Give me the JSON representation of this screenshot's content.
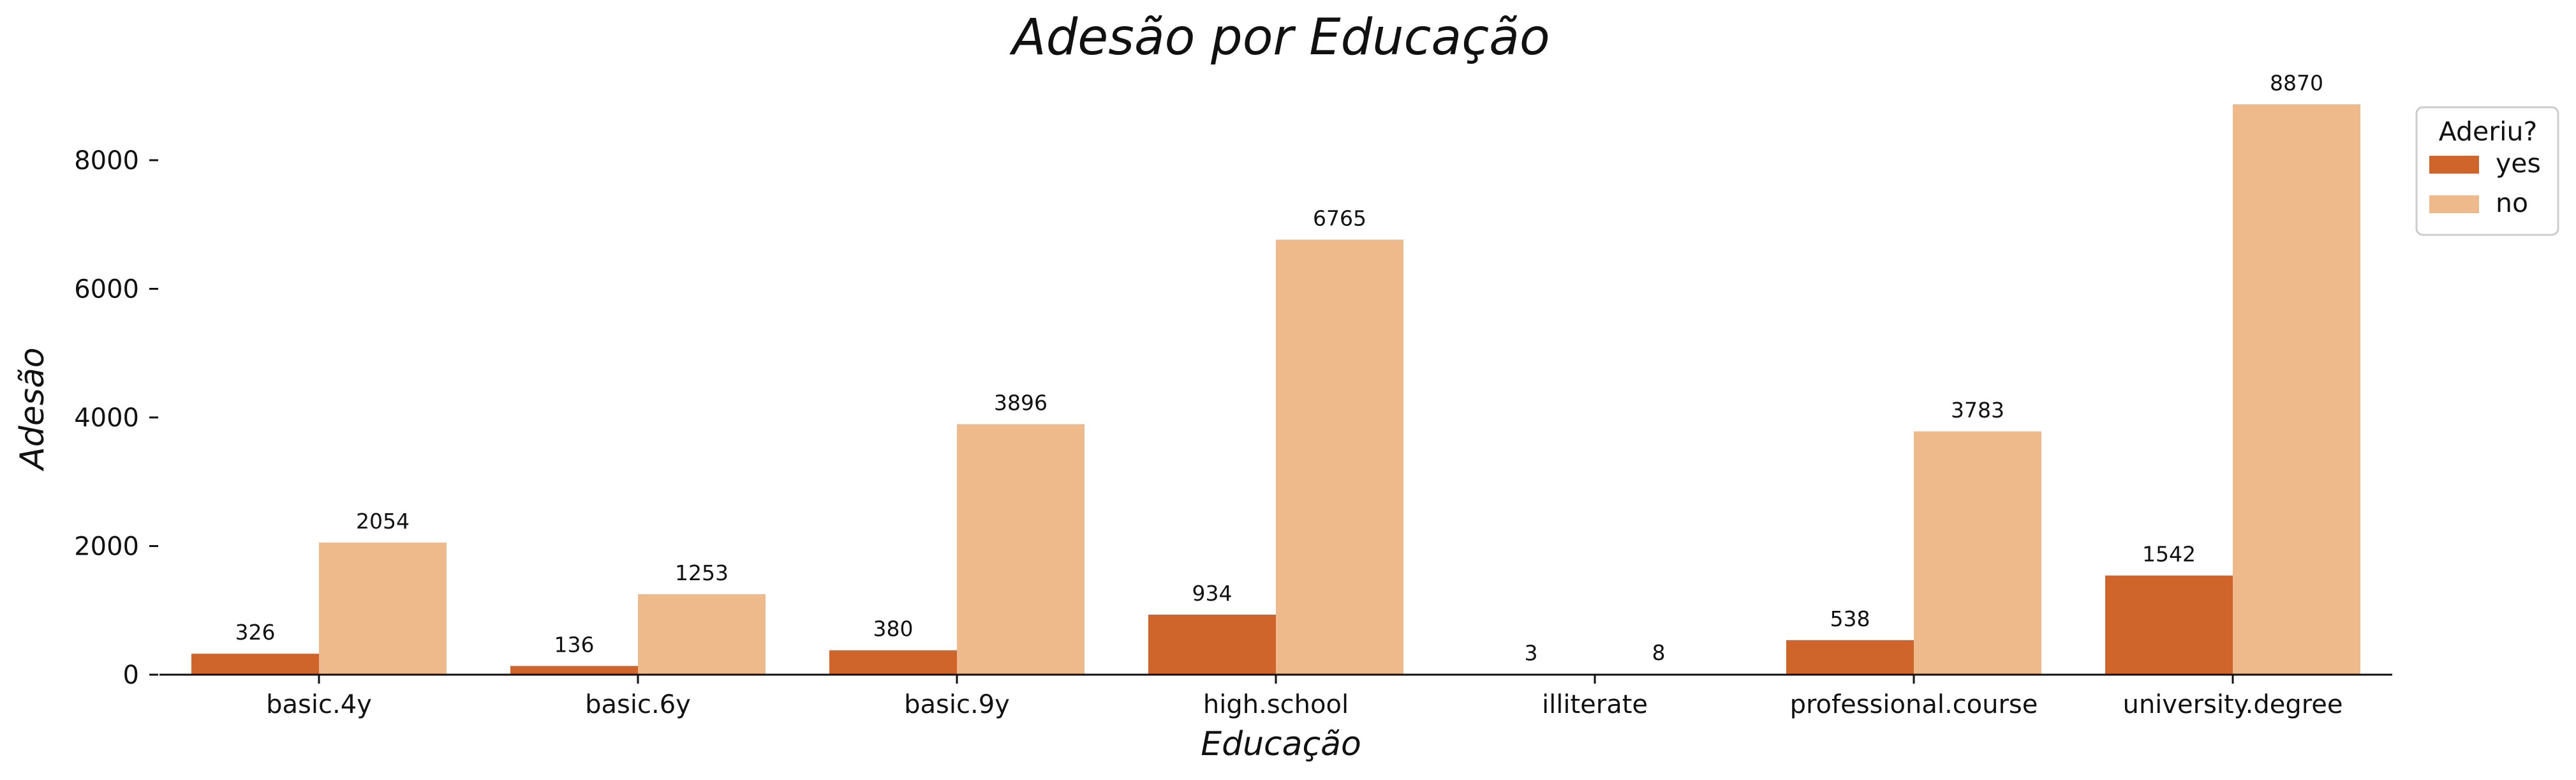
{
  "chart_data": {
    "type": "bar",
    "title": "Adesão por Educação",
    "xlabel": "Educação",
    "ylabel": "Adesão",
    "categories": [
      "basic.4y",
      "basic.6y",
      "basic.9y",
      "high.school",
      "illiterate",
      "professional.course",
      "university.degree"
    ],
    "series": [
      {
        "name": "yes",
        "color": "#cf652b",
        "values": [
          326,
          136,
          380,
          934,
          3,
          538,
          1542
        ]
      },
      {
        "name": "no",
        "color": "#eeba8c",
        "values": [
          2054,
          1253,
          3896,
          6765,
          8,
          3783,
          8870
        ]
      }
    ],
    "ylim": [
      0,
      9300
    ],
    "yticks": [
      0,
      2000,
      4000,
      6000,
      8000
    ],
    "legend": {
      "title": "Aderiu?",
      "placement": "upper-right-outside"
    },
    "grid": false
  }
}
